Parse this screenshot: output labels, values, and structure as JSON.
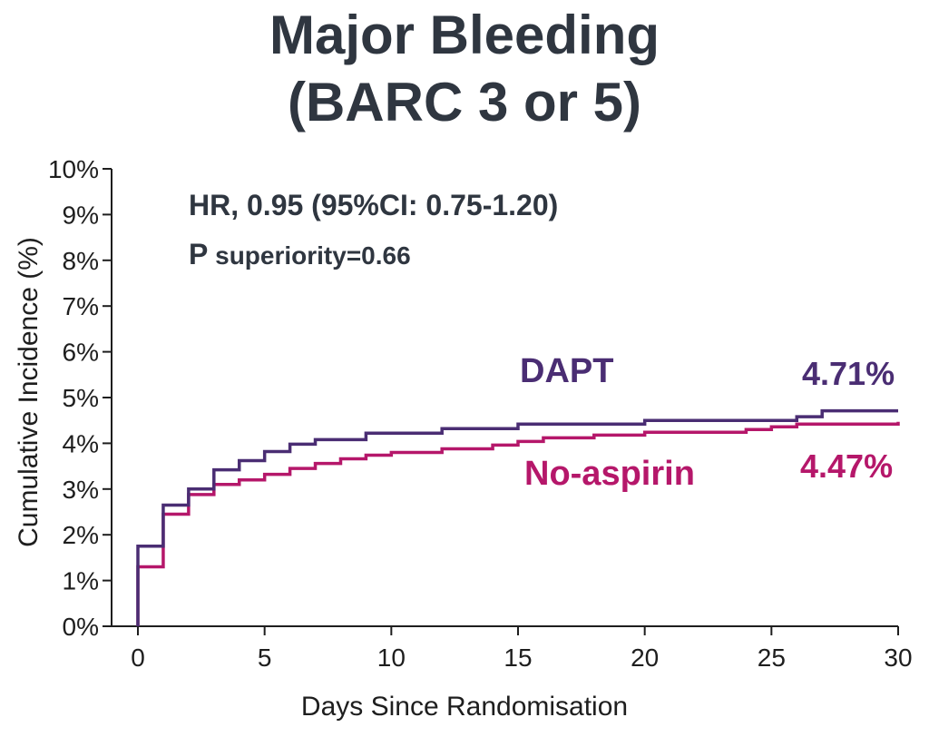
{
  "chart_data": {
    "type": "line",
    "step": true,
    "title_lines": [
      "Major Bleeding",
      "(BARC 3 or 5)"
    ],
    "annotations": [
      "HR, 0.95 (95%CI: 0.75-1.20)",
      "P superiority=0.66"
    ],
    "xlabel": "Days Since Randomisation",
    "ylabel": "Cumulative Incidence (%)",
    "xlim": [
      0,
      30
    ],
    "ylim": [
      0,
      10
    ],
    "xticks": [
      0,
      5,
      10,
      15,
      20,
      25,
      30
    ],
    "yticks": [
      0,
      1,
      2,
      3,
      4,
      5,
      6,
      7,
      8,
      9,
      10
    ],
    "ytick_labels": [
      "0%",
      "1%",
      "2%",
      "3%",
      "4%",
      "5%",
      "6%",
      "7%",
      "8%",
      "9%",
      "10%"
    ],
    "grid": false,
    "series": [
      {
        "name": "DAPT",
        "end_label": "4.71%",
        "color": "#4a2d73",
        "x": [
          0,
          0,
          1,
          2,
          3,
          4,
          5,
          6,
          7,
          9,
          12,
          15,
          20,
          26,
          27,
          30
        ],
        "y": [
          0,
          1.75,
          2.65,
          3.0,
          3.42,
          3.62,
          3.82,
          3.98,
          4.08,
          4.22,
          4.32,
          4.42,
          4.5,
          4.58,
          4.71,
          4.71
        ]
      },
      {
        "name": "No-aspirin",
        "end_label": "4.47%",
        "color": "#b5176a",
        "x": [
          0,
          0,
          1,
          2,
          3,
          4,
          5,
          6,
          7,
          8,
          9,
          10,
          12,
          14,
          15,
          16,
          18,
          20,
          24,
          25,
          26,
          30
        ],
        "y": [
          0,
          1.3,
          2.45,
          2.88,
          3.1,
          3.2,
          3.32,
          3.45,
          3.56,
          3.66,
          3.74,
          3.8,
          3.88,
          3.96,
          4.04,
          4.12,
          4.18,
          4.24,
          4.3,
          4.36,
          4.42,
          4.47
        ]
      }
    ]
  }
}
